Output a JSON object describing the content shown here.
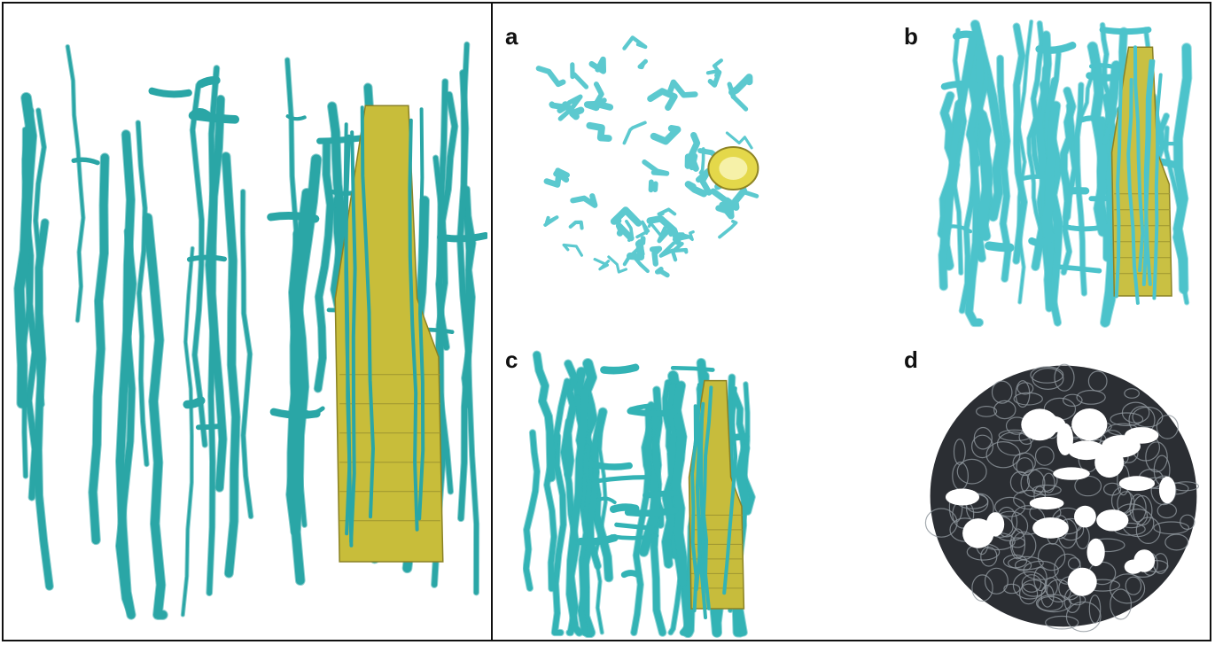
{
  "figure": {
    "panels": [
      {
        "id": "main",
        "label": "",
        "style": "side",
        "stems": 34,
        "seed": 7,
        "cyan": "#2aa6a6",
        "yellow": "#c8bd3a"
      },
      {
        "id": "a",
        "label": "a",
        "style": "top",
        "seed": 11,
        "cyan": "#5cc9cf",
        "yellow": "#e4d84a"
      },
      {
        "id": "b",
        "label": "b",
        "style": "side",
        "stems": 40,
        "seed": 23,
        "cyan": "#4cc3cb",
        "yellow": "#c9c043"
      },
      {
        "id": "c",
        "label": "c",
        "style": "side",
        "stems": 36,
        "seed": 31,
        "cyan": "#33b3b5",
        "yellow": "#c7bc3c"
      },
      {
        "id": "d",
        "label": "d",
        "style": "mesh",
        "seed": 41,
        "dark": "#2b2e33",
        "light": "#8e969c"
      }
    ],
    "colors": {
      "frame": "#111111",
      "background": "#ffffff"
    }
  }
}
